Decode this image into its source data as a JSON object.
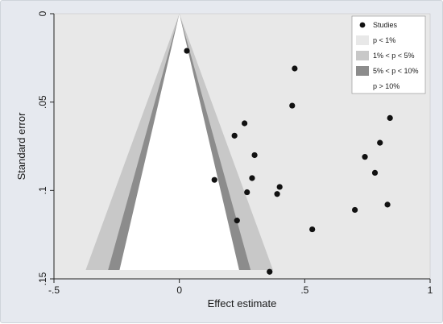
{
  "chart_data": {
    "type": "scatter",
    "subtype": "contour-enhanced funnel plot",
    "xlabel": "Effect estimate",
    "ylabel": "Standard error",
    "xlim": [
      -0.5,
      1
    ],
    "ylim": [
      0,
      0.15
    ],
    "y_axis_inverted": true,
    "x_ticks": [
      -0.5,
      0,
      0.5,
      1
    ],
    "x_tick_labels": [
      "-.5",
      "0",
      ".5",
      "1"
    ],
    "y_ticks": [
      0,
      0.05,
      0.1,
      0.15
    ],
    "y_tick_labels": [
      "0",
      ".05",
      ".1",
      ".15"
    ],
    "max_se": 0.145,
    "grid": false,
    "legend_position": "top-right",
    "legend": [
      {
        "label": "Studies",
        "kind": "marker",
        "color": "#111111"
      },
      {
        "label": "p < 1%",
        "kind": "region",
        "color": "#e8e8e8"
      },
      {
        "label": "1% < p < 5%",
        "kind": "region",
        "color": "#c8c8c8"
      },
      {
        "label": "5% < p < 10%",
        "kind": "region",
        "color": "#8c8c8c"
      },
      {
        "label": "p > 10%",
        "kind": "region",
        "color": "#ffffff"
      }
    ],
    "contours": [
      {
        "name": "p > 10%",
        "z": 1.645,
        "color": "#ffffff"
      },
      {
        "name": "5% < p < 10%",
        "z": 1.96,
        "color": "#8c8c8c"
      },
      {
        "name": "1% < p < 5%",
        "z": 2.576,
        "color": "#c8c8c8"
      }
    ],
    "background_region_color": "#e8e8e8",
    "points": [
      {
        "x": 0.03,
        "y": 0.021
      },
      {
        "x": 0.46,
        "y": 0.031
      },
      {
        "x": 0.45,
        "y": 0.052
      },
      {
        "x": 0.84,
        "y": 0.059
      },
      {
        "x": 0.26,
        "y": 0.062
      },
      {
        "x": 0.22,
        "y": 0.069
      },
      {
        "x": 0.8,
        "y": 0.073
      },
      {
        "x": 0.3,
        "y": 0.08
      },
      {
        "x": 0.74,
        "y": 0.081
      },
      {
        "x": 0.78,
        "y": 0.09
      },
      {
        "x": 0.29,
        "y": 0.093
      },
      {
        "x": 0.14,
        "y": 0.094
      },
      {
        "x": 0.4,
        "y": 0.098
      },
      {
        "x": 0.27,
        "y": 0.101
      },
      {
        "x": 0.39,
        "y": 0.102
      },
      {
        "x": 0.83,
        "y": 0.108
      },
      {
        "x": 0.7,
        "y": 0.111
      },
      {
        "x": 0.23,
        "y": 0.117
      },
      {
        "x": 0.53,
        "y": 0.122
      },
      {
        "x": 0.36,
        "y": 0.146
      }
    ]
  }
}
